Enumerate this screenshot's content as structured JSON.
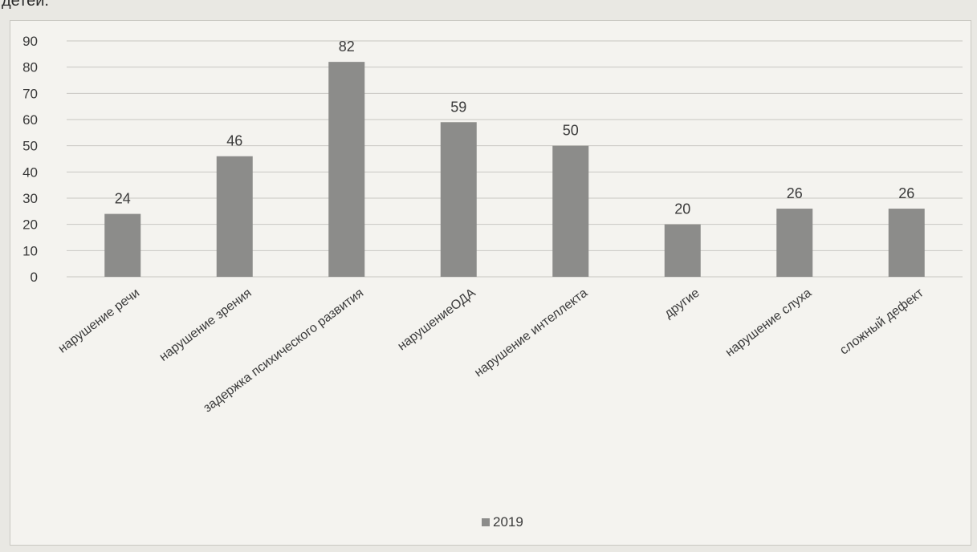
{
  "page": {
    "top_fragment": "детей."
  },
  "chart_data": {
    "type": "bar",
    "categories": [
      "нарушение речи",
      "нарушение зрения",
      "задержка психического развития",
      "нарушениеОДА",
      "нарушение интеллекта",
      "другие",
      "нарушение слуха",
      "сложный дефект"
    ],
    "series": [
      {
        "name": "2019",
        "values": [
          24,
          46,
          82,
          59,
          50,
          20,
          26,
          26
        ]
      }
    ],
    "ylim": [
      0,
      90
    ],
    "yticks": [
      0,
      10,
      20,
      30,
      40,
      50,
      60,
      70,
      80,
      90
    ],
    "grid": true,
    "legend": "bottom",
    "bar_color": "#8c8c8a"
  }
}
